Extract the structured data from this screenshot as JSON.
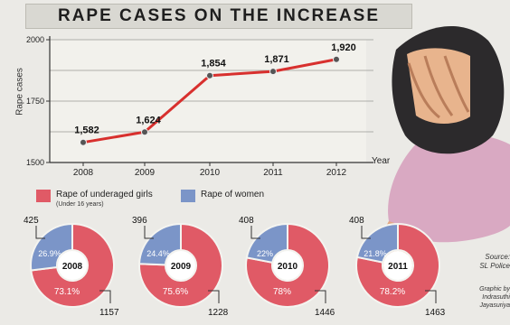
{
  "title": "RAPE CASES ON THE INCREASE",
  "chart_data": [
    {
      "type": "line",
      "x": [
        "2008",
        "2009",
        "2010",
        "2011",
        "2012"
      ],
      "values": [
        1582,
        1624,
        1854,
        1871,
        1920
      ],
      "value_labels": [
        "1,582",
        "1,624",
        "1,854",
        "1,871",
        "1,920"
      ],
      "ylabel": "Rape cases",
      "xlabel": "Year",
      "ylim": [
        1500,
        2000
      ],
      "yticks": [
        "1500",
        "1750",
        "2000"
      ],
      "line_color": "#d8302e",
      "marker_color": "#555555",
      "grid": true
    },
    {
      "type": "pie",
      "style": "donut",
      "legend": [
        {
          "label": "Rape of underaged girls",
          "sublabel": "(Under 16 years)",
          "color": "#e05a66"
        },
        {
          "label": "Rape of women",
          "sublabel": "",
          "color": "#7b95c8"
        }
      ],
      "charts": [
        {
          "year": "2008",
          "girls_pct": "73.1%",
          "women_pct": "26.9%",
          "girls_count": "1157",
          "women_count": "425",
          "girls": 73.1
        },
        {
          "year": "2009",
          "girls_pct": "75.6%",
          "women_pct": "24.4%",
          "girls_count": "1228",
          "women_count": "396",
          "girls": 75.6
        },
        {
          "year": "2010",
          "girls_pct": "78%",
          "women_pct": "22%",
          "girls_count": "1446",
          "women_count": "408",
          "girls": 78
        },
        {
          "year": "2011",
          "girls_pct": "78.2%",
          "women_pct": "21.8%",
          "girls_count": "1463",
          "women_count": "408",
          "girls": 78.2
        }
      ]
    }
  ],
  "source": [
    "Source:",
    "SL Police"
  ],
  "graphic": [
    "Graphic by",
    "Indrasuthi",
    "Jayasuriya"
  ]
}
